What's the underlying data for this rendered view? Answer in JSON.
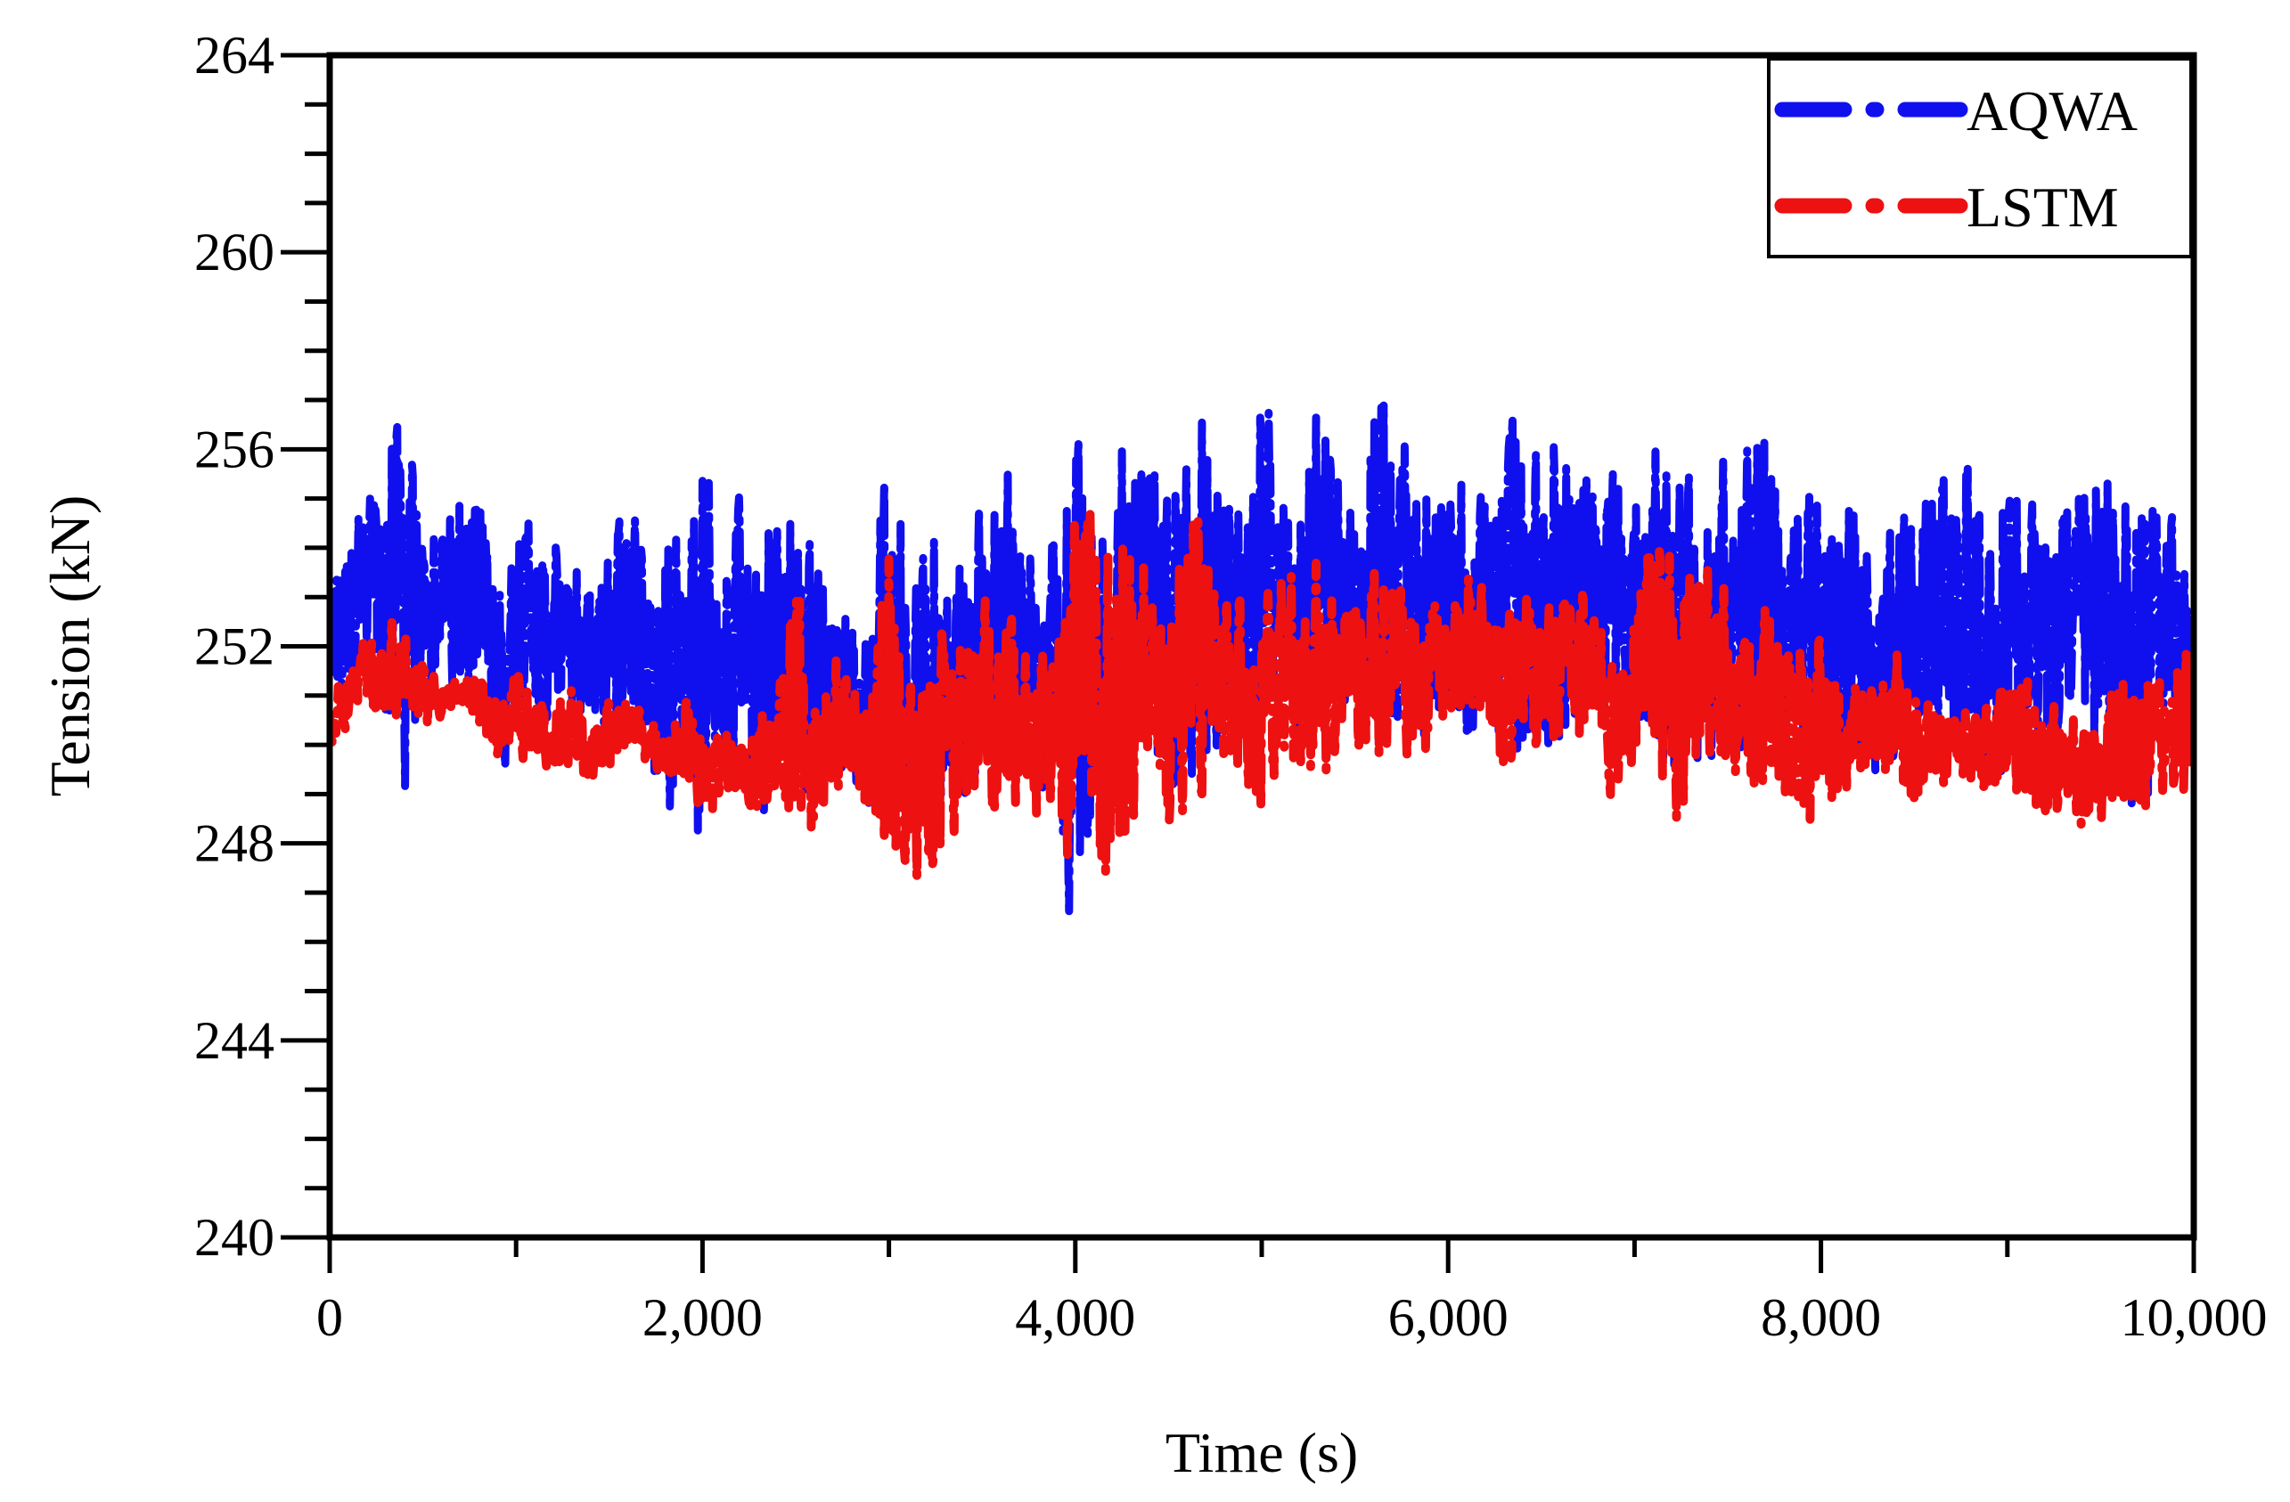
{
  "chart_data": {
    "type": "line",
    "title": "",
    "xlabel": "Time (s)",
    "ylabel": "Tension (kN)",
    "xlim": [
      0,
      10000
    ],
    "ylim": [
      240,
      264
    ],
    "x_ticks": [
      0,
      2000,
      4000,
      6000,
      8000,
      10000
    ],
    "x_tick_labels": [
      "0",
      "2,000",
      "4,000",
      "6,000",
      "8,000",
      "10,000"
    ],
    "y_ticks": [
      240,
      244,
      248,
      252,
      256,
      260,
      264
    ],
    "y_tick_labels": [
      "240",
      "244",
      "248",
      "252",
      "256",
      "260",
      "264"
    ],
    "grid": false,
    "legend": {
      "position": "top-right",
      "entries": [
        {
          "name": "AQWA",
          "color": "#1010ee",
          "style": "dash-dot"
        },
        {
          "name": "LSTM",
          "color": "#ee1111",
          "style": "dash-dot"
        }
      ]
    },
    "series": [
      {
        "name": "AQWA",
        "color": "#1010ee",
        "x": [
          0,
          100,
          200,
          300,
          400,
          500,
          600,
          700,
          800,
          900,
          1000,
          1100,
          1200,
          1300,
          1400,
          1500,
          1600,
          1700,
          1800,
          1900,
          2000,
          2100,
          2200,
          2300,
          2400,
          2500,
          2600,
          2700,
          2800,
          2900,
          3000,
          3100,
          3200,
          3300,
          3400,
          3500,
          3600,
          3700,
          3800,
          3900,
          4000,
          4100,
          4200,
          4300,
          4400,
          4500,
          4600,
          4700,
          4800,
          4900,
          5000,
          5100,
          5200,
          5300,
          5400,
          5500,
          5600,
          5700,
          5800,
          5900,
          6000,
          6100,
          6200,
          6300,
          6400,
          6500,
          6600,
          6700,
          6800,
          6900,
          7000,
          7100,
          7200,
          7300,
          7400,
          7500,
          7600,
          7700,
          7800,
          7900,
          8000,
          8100,
          8200,
          8300,
          8400,
          8500,
          8600,
          8700,
          8800,
          8900,
          9000,
          9100,
          9200,
          9300,
          9400,
          9500,
          9600,
          9700,
          9800,
          9900,
          10000
        ],
        "y_max": [
          254.0,
          255.4,
          255.0,
          256.6,
          258.8,
          254.5,
          255.1,
          255.8,
          255.3,
          254.2,
          255.2,
          254.9,
          254.5,
          254.4,
          253.8,
          254.3,
          255.1,
          254.8,
          255.0,
          254.2,
          256.6,
          254.2,
          255.2,
          256.2,
          254.6,
          256.2,
          254.0,
          253.5,
          253.3,
          253.6,
          256.5,
          254.9,
          256.4,
          254.0,
          254.5,
          255.4,
          257.6,
          254.2,
          254.3,
          254.7,
          256.9,
          254.6,
          257.9,
          256.4,
          256.2,
          255.4,
          256.3,
          257.9,
          256.1,
          254.8,
          258.2,
          256.0,
          255.5,
          257.6,
          256.4,
          255.0,
          258.2,
          256.8,
          257.1,
          255.3,
          255.3,
          256.4,
          256.4,
          256.4,
          257.1,
          255.8,
          258.3,
          256.6,
          255.9,
          256.0,
          255.3,
          256.8,
          256.3,
          255.8,
          255.5,
          256.6,
          256.6,
          256.8,
          255.2,
          255.8,
          255.4,
          255.3,
          255.2,
          253.4,
          255.4,
          254.6,
          255.8,
          256.2,
          256.6,
          254.9,
          256.6,
          255.4,
          255.0,
          255.2,
          256.0,
          256.2,
          256.2,
          255.2,
          255.3,
          255.0,
          252.5
        ],
        "y_min": [
          250.7,
          250.3,
          250.7,
          249.8,
          248.4,
          250.4,
          250.9,
          250.3,
          250.6,
          249.2,
          249.8,
          250.5,
          250.1,
          250.0,
          249.6,
          250.0,
          249.7,
          249.8,
          248.0,
          248.9,
          246.6,
          248.9,
          249.3,
          247.8,
          249.0,
          248.0,
          248.8,
          249.3,
          249.0,
          248.2,
          248.0,
          247.6,
          248.6,
          248.9,
          248.4,
          249.3,
          248.6,
          248.8,
          248.9,
          248.3,
          244.9,
          247.8,
          248.3,
          248.4,
          249.2,
          247.7,
          247.9,
          249.1,
          249.7,
          249.6,
          249.2,
          249.9,
          249.8,
          249.1,
          249.5,
          249.4,
          249.5,
          249.8,
          249.6,
          249.9,
          249.8,
          249.5,
          249.9,
          249.4,
          249.3,
          249.7,
          249.5,
          249.8,
          249.7,
          249.9,
          249.7,
          250.1,
          247.8,
          248.6,
          249.3,
          249.1,
          249.6,
          249.6,
          249.8,
          249.4,
          249.4,
          249.3,
          249.3,
          248.6,
          249.7,
          249.8,
          249.0,
          249.0,
          249.2,
          249.0,
          248.9,
          249.2,
          249.1,
          249.2,
          249.3,
          248.9,
          248.2,
          247.0,
          249.5,
          250.3,
          250.8
        ],
        "mean": 252.6
      },
      {
        "name": "LSTM",
        "color": "#ee1111",
        "x": [
          0,
          100,
          200,
          300,
          400,
          500,
          600,
          700,
          800,
          900,
          1000,
          1100,
          1200,
          1300,
          1400,
          1500,
          1600,
          1700,
          1800,
          1900,
          2000,
          2100,
          2200,
          2300,
          2400,
          2500,
          2600,
          2700,
          2800,
          2900,
          3000,
          3100,
          3200,
          3300,
          3400,
          3500,
          3600,
          3700,
          3800,
          3900,
          4000,
          4100,
          4200,
          4300,
          4400,
          4500,
          4600,
          4700,
          4800,
          4900,
          5000,
          5100,
          5200,
          5300,
          5400,
          5500,
          5600,
          5700,
          5800,
          5900,
          6000,
          6100,
          6200,
          6300,
          6400,
          6500,
          6600,
          6700,
          6800,
          6900,
          7000,
          7100,
          7200,
          7300,
          7400,
          7500,
          7600,
          7700,
          7800,
          7900,
          8000,
          8100,
          8200,
          8300,
          8400,
          8500,
          8600,
          8700,
          8800,
          8900,
          9000,
          9100,
          9200,
          9300,
          9400,
          9500,
          9600,
          9700,
          9800,
          9900,
          10000
        ],
        "y_max": [
          251.0,
          251.8,
          252.3,
          252.9,
          252.5,
          251.9,
          251.5,
          251.3,
          251.9,
          251.0,
          251.6,
          251.1,
          251.2,
          251.5,
          250.6,
          251.0,
          251.0,
          250.8,
          250.2,
          251.8,
          250.3,
          251.1,
          250.2,
          250.8,
          251.0,
          253.9,
          251.4,
          252.0,
          251.8,
          251.3,
          255.4,
          252.1,
          252.5,
          253.1,
          252.4,
          253.1,
          253.2,
          252.4,
          252.1,
          252.3,
          255.2,
          256.5,
          254.1,
          255.6,
          254.7,
          254.2,
          254.9,
          255.8,
          253.3,
          253.1,
          253.1,
          254.5,
          253.8,
          254.2,
          253.6,
          253.4,
          253.9,
          253.7,
          253.3,
          252.9,
          253.7,
          254.4,
          253.2,
          252.9,
          253.4,
          253.0,
          253.3,
          253.9,
          252.9,
          252.3,
          253.1,
          254.8,
          254.5,
          254.2,
          254.8,
          253.1,
          252.4,
          253.0,
          252.9,
          252.4,
          253.0,
          252.0,
          251.4,
          251.3,
          252.2,
          251.8,
          251.2,
          250.6,
          251.2,
          251.1,
          251.4,
          251.7,
          250.7,
          251.3,
          251.0,
          251.2,
          251.9,
          251.6,
          252.3,
          251.9,
          252.6
        ],
        "y_min": [
          249.8,
          250.0,
          250.3,
          250.1,
          250.5,
          250.3,
          250.3,
          250.8,
          250.2,
          249.5,
          249.8,
          249.4,
          249.1,
          249.4,
          248.8,
          249.3,
          249.9,
          249.4,
          249.2,
          248.8,
          248.4,
          248.5,
          248.7,
          248.0,
          248.5,
          248.2,
          247.8,
          248.9,
          249.0,
          247.9,
          247.5,
          247.4,
          245.9,
          247.4,
          248.6,
          248.3,
          248.2,
          248.5,
          248.0,
          248.0,
          246.8,
          247.5,
          245.9,
          247.5,
          248.4,
          247.5,
          248.6,
          248.8,
          249.4,
          249.0,
          248.4,
          249.1,
          248.9,
          248.6,
          249.3,
          249.6,
          249.3,
          249.2,
          249.4,
          249.5,
          249.6,
          249.5,
          249.3,
          249.1,
          249.7,
          249.9,
          249.7,
          249.3,
          249.4,
          248.7,
          249.1,
          249.2,
          247.7,
          248.9,
          249.1,
          249.2,
          249.0,
          248.7,
          248.6,
          248.0,
          248.1,
          248.5,
          248.9,
          249.3,
          248.8,
          248.4,
          248.6,
          249.0,
          249.0,
          248.5,
          248.8,
          248.3,
          248.2,
          248.0,
          247.9,
          248.1,
          248.2,
          247.8,
          248.5,
          248.9,
          248.6
        ],
        "mean": 251.2
      }
    ]
  }
}
